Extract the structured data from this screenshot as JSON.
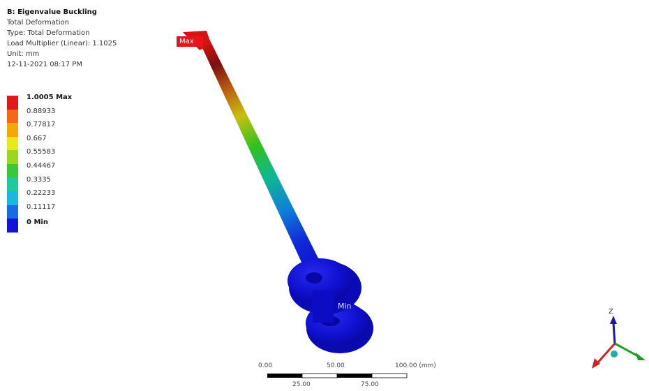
{
  "info": {
    "title": "B: Eigenvalue Buckling",
    "result": "Total Deformation",
    "type": "Type: Total Deformation",
    "load_multiplier": "Load Multiplier (Linear): 1.1025",
    "unit": "Unit: mm",
    "timestamp": "12-11-2021 08:17 PM"
  },
  "legend": {
    "levels": [
      {
        "label": "1.0005 Max",
        "color": "#e01a1a"
      },
      {
        "label": "0.88933",
        "color": "#f46a14"
      },
      {
        "label": "0.77817",
        "color": "#f4a70a"
      },
      {
        "label": "0.667",
        "color": "#e8e81a"
      },
      {
        "label": "0.55583",
        "color": "#9ad820"
      },
      {
        "label": "0.44467",
        "color": "#3ac83a"
      },
      {
        "label": "0.3335",
        "color": "#22c8a0"
      },
      {
        "label": "0.22233",
        "color": "#1ab8e0"
      },
      {
        "label": "0.11117",
        "color": "#1a6ae8"
      }
    ],
    "last_swatch_color": "#1212d8",
    "min_label": "0 Min"
  },
  "model": {
    "max_tag": "Max",
    "min_tag": "Min"
  },
  "scale_bar": {
    "top_labels": [
      "0.00",
      "50.00",
      "100.00 (mm)"
    ],
    "bottom_labels": [
      "25.00",
      "75.00"
    ]
  },
  "triad": {
    "z_label": "Z",
    "x_color": "#d42020",
    "y_color": "#18a020",
    "z_color": "#1a1aa8",
    "origin_color": "#18b0a8"
  }
}
